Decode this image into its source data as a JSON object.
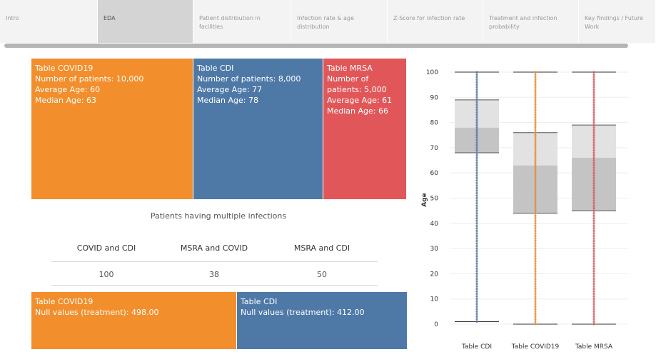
{
  "tabs": [
    {
      "label": "Intro"
    },
    {
      "label": "EDA"
    },
    {
      "label": "Patient distribution in facilities"
    },
    {
      "label": "Infection rate & age distribution"
    },
    {
      "label": "Z-Score for infection rate"
    },
    {
      "label": "Treatment and infection probability"
    },
    {
      "label": "Key findings / Future Work"
    }
  ],
  "treemap_top": [
    {
      "table": "Table COVID19",
      "patients": "Number of patients: 10,000",
      "avg": "Average Age: 60",
      "median": "Median Age: 63",
      "color": "#f28e2b"
    },
    {
      "table": "Table CDI",
      "patients": "Number of patients: 8,000",
      "avg": "Average Age: 77",
      "median": "Median Age: 78",
      "color": "#4e79a7"
    },
    {
      "table": "Table MRSA",
      "patients": "Number of patients: 5,000",
      "avg": "Average Age: 61",
      "median": "Median Age: 66",
      "color": "#e15759"
    }
  ],
  "multiple_infections": {
    "title": "Patients having multiple infections",
    "columns": [
      "COVID and CDI",
      "MSRA and COVID",
      "MSRA and CDI"
    ],
    "values": [
      "100",
      "38",
      "50"
    ]
  },
  "treemap_bottom": [
    {
      "table": "Table COVID19",
      "nulls": "Null values (treatment): 498.00",
      "color": "#f28e2b"
    },
    {
      "table": "Table CDI",
      "nulls": "Null values (treatment): 412.00",
      "color": "#4e79a7"
    }
  ],
  "chart_data": {
    "type": "box",
    "ylabel": "Age",
    "ylim": [
      0,
      100
    ],
    "yticks": [
      "0",
      "10",
      "20",
      "30",
      "40",
      "50",
      "60",
      "70",
      "80",
      "90",
      "100"
    ],
    "categories": [
      "Table CDI",
      "Table COVID19",
      "Table MRSA"
    ],
    "colors": [
      "#4e79a7",
      "#f28e2b",
      "#e15759"
    ],
    "boxes": [
      {
        "name": "Table CDI",
        "min": 1,
        "q1": 68,
        "median": 78,
        "q3": 89,
        "max": 100
      },
      {
        "name": "Table COVID19",
        "min": 0,
        "q1": 44,
        "median": 63,
        "q3": 76,
        "max": 100
      },
      {
        "name": "Table MRSA",
        "min": 0,
        "q1": 45,
        "median": 66,
        "q3": 79,
        "max": 100
      }
    ]
  }
}
